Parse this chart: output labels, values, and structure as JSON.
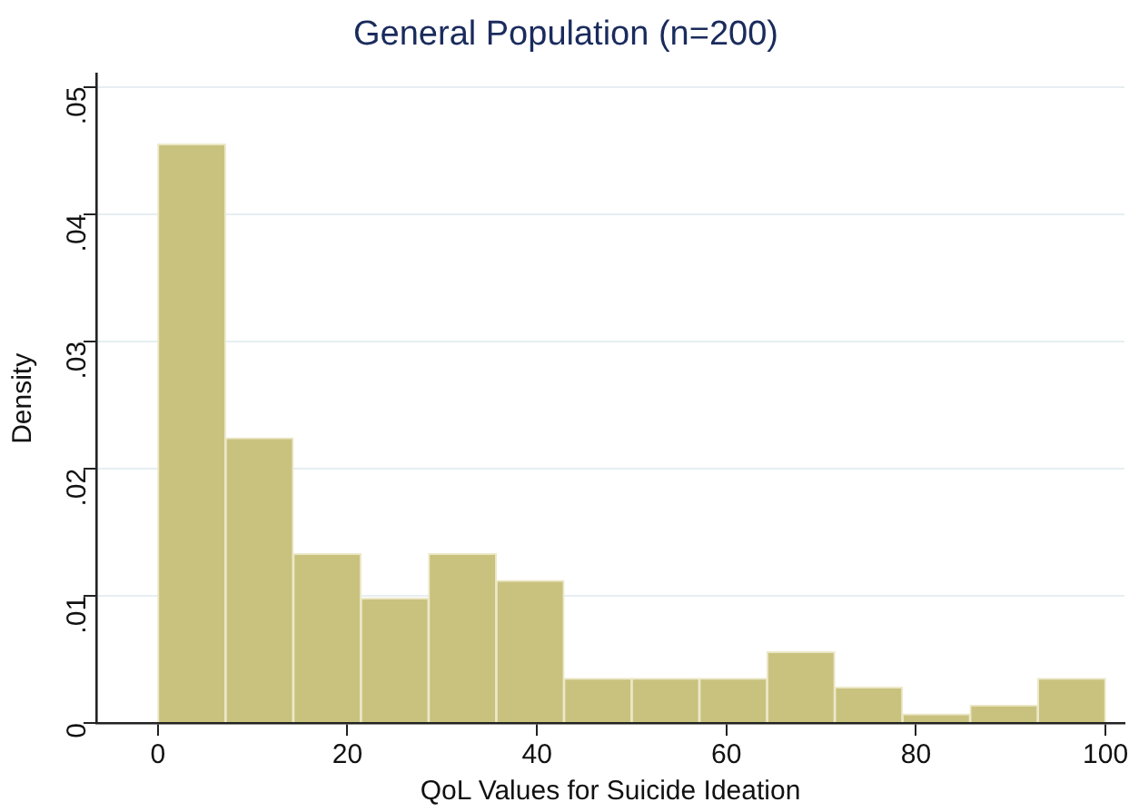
{
  "chart_data": {
    "type": "histogram",
    "title": "General Population (n=200)",
    "xlabel": "QoL Values for Suicide Ideation",
    "ylabel": "Density",
    "bins": [
      0,
      7.14,
      14.29,
      21.43,
      28.57,
      35.71,
      42.86,
      50,
      57.14,
      64.29,
      71.43,
      78.57,
      85.71,
      92.86,
      100
    ],
    "values": [
      0.0455,
      0.0224,
      0.0133,
      0.0098,
      0.0133,
      0.0112,
      0.0035,
      0.0035,
      0.0035,
      0.0056,
      0.0028,
      0.0007,
      0.0014,
      0.0035
    ],
    "color": "#c9c27f",
    "xlim": [
      -6.5,
      102
    ],
    "xticks": [
      0,
      20,
      40,
      60,
      80,
      100
    ],
    "ylim": [
      0,
      0.051
    ],
    "yticks": [
      0,
      {
        "value": 0.01,
        "label": ".01"
      },
      {
        "value": 0.02,
        "label": ".02"
      },
      {
        "value": 0.03,
        "label": ".03"
      },
      {
        "value": 0.04,
        "label": ".04"
      },
      {
        "value": 0.05,
        "label": ".05"
      }
    ],
    "grid": "y",
    "legend": false
  }
}
